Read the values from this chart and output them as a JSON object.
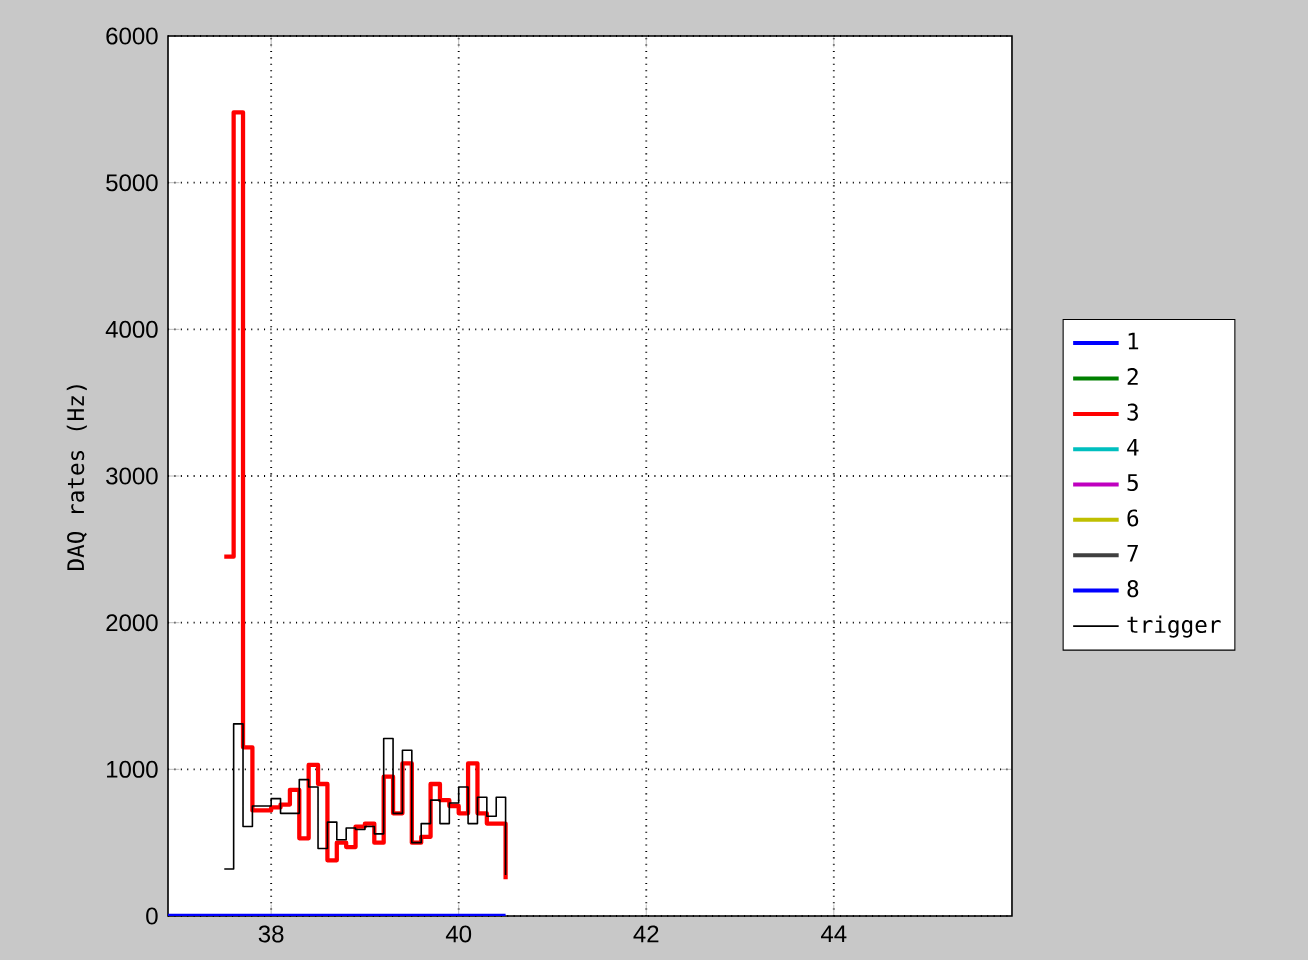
{
  "chart_data": {
    "type": "step",
    "ylabel": "DAQ rates (Hz)",
    "x": [
      37.5,
      37.6,
      37.7,
      37.8,
      37.9,
      38.0,
      38.1,
      38.2,
      38.3,
      38.4,
      38.5,
      38.6,
      38.7,
      38.8,
      38.9,
      39.0,
      39.1,
      39.2,
      39.3,
      39.4,
      39.5,
      39.6,
      39.7,
      39.8,
      39.9,
      40.0,
      40.1,
      40.2,
      40.3,
      40.4,
      40.5
    ],
    "series": [
      {
        "name": "1",
        "color": "#0000ff",
        "values": [
          null,
          null,
          null,
          null,
          null,
          null,
          null,
          null,
          null,
          null,
          null,
          null,
          null,
          null,
          null,
          null,
          null,
          null,
          null,
          null,
          null,
          null,
          null,
          null,
          null,
          null,
          null,
          null,
          null,
          null,
          null
        ]
      },
      {
        "name": "2",
        "color": "#008000",
        "values": [
          null,
          null,
          null,
          null,
          null,
          null,
          null,
          null,
          null,
          null,
          null,
          null,
          null,
          null,
          null,
          null,
          null,
          null,
          null,
          null,
          null,
          null,
          null,
          null,
          null,
          null,
          null,
          null,
          null,
          null,
          null
        ]
      },
      {
        "name": "3",
        "color": "#ff0000",
        "values": [
          2450,
          5480,
          1150,
          720,
          720,
          740,
          760,
          860,
          530,
          1030,
          900,
          380,
          500,
          470,
          610,
          630,
          500,
          950,
          700,
          1040,
          500,
          540,
          900,
          790,
          750,
          700,
          1040,
          700,
          630,
          630,
          250
        ]
      },
      {
        "name": "4",
        "color": "#00bfbf",
        "values": [
          null,
          null,
          null,
          null,
          null,
          null,
          null,
          null,
          null,
          null,
          null,
          null,
          null,
          null,
          null,
          null,
          null,
          null,
          null,
          null,
          null,
          null,
          null,
          null,
          null,
          null,
          null,
          null,
          null,
          null,
          null
        ]
      },
      {
        "name": "5",
        "color": "#bf00bf",
        "values": [
          null,
          null,
          null,
          null,
          null,
          null,
          null,
          null,
          null,
          null,
          null,
          null,
          null,
          null,
          null,
          null,
          null,
          null,
          null,
          null,
          null,
          null,
          null,
          null,
          null,
          null,
          null,
          null,
          null,
          null,
          null
        ]
      },
      {
        "name": "6",
        "color": "#bfbf00",
        "values": [
          null,
          null,
          null,
          null,
          null,
          null,
          null,
          null,
          null,
          null,
          null,
          null,
          null,
          null,
          null,
          null,
          null,
          null,
          null,
          null,
          null,
          null,
          null,
          null,
          null,
          null,
          null,
          null,
          null,
          null,
          null
        ]
      },
      {
        "name": "7",
        "color": "#404040",
        "values": [
          null,
          null,
          null,
          null,
          null,
          null,
          null,
          null,
          null,
          null,
          null,
          null,
          null,
          null,
          null,
          null,
          null,
          null,
          null,
          null,
          null,
          null,
          null,
          null,
          null,
          null,
          null,
          null,
          null,
          null,
          null
        ]
      },
      {
        "name": "8",
        "color": "#0000ff",
        "x": [
          36.9,
          40.5
        ],
        "values": [
          0,
          0
        ]
      },
      {
        "name": "trigger",
        "color": "#000000",
        "values": [
          320,
          1310,
          610,
          750,
          750,
          800,
          700,
          700,
          930,
          880,
          460,
          640,
          520,
          600,
          590,
          610,
          560,
          1210,
          700,
          1130,
          500,
          630,
          790,
          630,
          770,
          880,
          630,
          810,
          680,
          810,
          280
        ]
      }
    ],
    "xlim": [
      36.9,
      45.9
    ],
    "ylim": [
      0,
      6000
    ],
    "xticks": [
      38,
      40,
      42,
      44
    ],
    "yticks": [
      0,
      1000,
      2000,
      3000,
      4000,
      5000,
      6000
    ],
    "grid": true,
    "legend": "right",
    "marker": "none",
    "line_style": "solid"
  }
}
